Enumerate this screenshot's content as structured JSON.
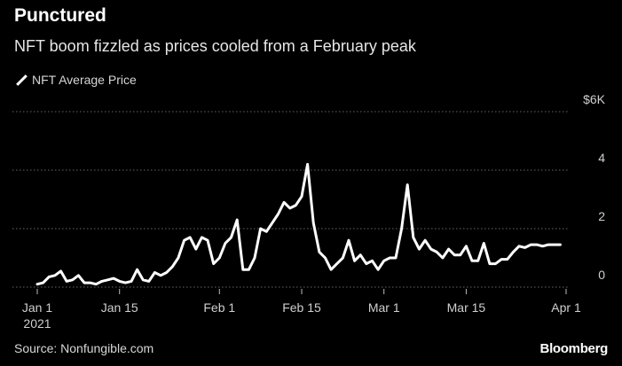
{
  "header": {
    "title": "Punctured",
    "subtitle": "NFT boom fizzled as prices cooled from a February peak"
  },
  "legend": {
    "label": "NFT Average Price"
  },
  "footer": {
    "source": "Source: Nonfungible.com",
    "brand": "Bloomberg"
  },
  "colors": {
    "background": "#000000",
    "line": "#ffffff",
    "grid": "#666666",
    "text": "#cfcfcf"
  },
  "chart_data": {
    "type": "line",
    "title": "Punctured",
    "subtitle": "NFT boom fizzled as prices cooled from a February peak",
    "xlabel": "",
    "ylabel": "",
    "x_range_days": [
      0,
      90
    ],
    "ylim": [
      0,
      6
    ],
    "y_ticks": [
      {
        "value": 0,
        "label": "0"
      },
      {
        "value": 2,
        "label": "2"
      },
      {
        "value": 4,
        "label": "4"
      },
      {
        "value": 6,
        "label": "$6K"
      }
    ],
    "x_ticks": [
      {
        "day": 0,
        "label": "Jan 1",
        "sublabel": "2021"
      },
      {
        "day": 14,
        "label": "Jan 15"
      },
      {
        "day": 31,
        "label": "Feb 1"
      },
      {
        "day": 45,
        "label": "Feb 15"
      },
      {
        "day": 59,
        "label": "Mar 1"
      },
      {
        "day": 73,
        "label": "Mar 15"
      },
      {
        "day": 90,
        "label": "Apr 1"
      }
    ],
    "grid": "dotted horizontal",
    "legend_position": "top-left",
    "series": [
      {
        "name": "NFT Average Price",
        "unit": "$K",
        "dates": [
          "2021-01-01",
          "2021-01-02",
          "2021-01-03",
          "2021-01-04",
          "2021-01-05",
          "2021-01-06",
          "2021-01-07",
          "2021-01-08",
          "2021-01-09",
          "2021-01-10",
          "2021-01-11",
          "2021-01-12",
          "2021-01-13",
          "2021-01-14",
          "2021-01-15",
          "2021-01-16",
          "2021-01-17",
          "2021-01-18",
          "2021-01-19",
          "2021-01-20",
          "2021-01-21",
          "2021-01-22",
          "2021-01-23",
          "2021-01-24",
          "2021-01-25",
          "2021-01-26",
          "2021-01-27",
          "2021-01-28",
          "2021-01-29",
          "2021-01-30",
          "2021-01-31",
          "2021-02-01",
          "2021-02-02",
          "2021-02-03",
          "2021-02-04",
          "2021-02-05",
          "2021-02-06",
          "2021-02-07",
          "2021-02-08",
          "2021-02-09",
          "2021-02-10",
          "2021-02-11",
          "2021-02-12",
          "2021-02-13",
          "2021-02-14",
          "2021-02-15",
          "2021-02-16",
          "2021-02-17",
          "2021-02-18",
          "2021-02-19",
          "2021-02-20",
          "2021-02-21",
          "2021-02-22",
          "2021-02-23",
          "2021-02-24",
          "2021-02-25",
          "2021-02-26",
          "2021-02-27",
          "2021-02-28",
          "2021-03-01",
          "2021-03-02",
          "2021-03-03",
          "2021-03-04",
          "2021-03-05",
          "2021-03-06",
          "2021-03-07",
          "2021-03-08",
          "2021-03-09",
          "2021-03-10",
          "2021-03-11",
          "2021-03-12",
          "2021-03-13",
          "2021-03-14",
          "2021-03-15",
          "2021-03-16",
          "2021-03-17",
          "2021-03-18",
          "2021-03-19",
          "2021-03-20",
          "2021-03-21",
          "2021-03-22",
          "2021-03-23",
          "2021-03-24",
          "2021-03-25",
          "2021-03-26",
          "2021-03-27",
          "2021-03-28",
          "2021-03-29",
          "2021-03-30",
          "2021-03-31"
        ],
        "values": [
          0.1,
          0.15,
          0.35,
          0.4,
          0.55,
          0.2,
          0.25,
          0.4,
          0.15,
          0.15,
          0.1,
          0.2,
          0.25,
          0.3,
          0.2,
          0.15,
          0.2,
          0.6,
          0.25,
          0.2,
          0.5,
          0.4,
          0.5,
          0.7,
          1.0,
          1.6,
          1.7,
          1.3,
          1.7,
          1.6,
          0.8,
          1.0,
          1.5,
          1.7,
          2.3,
          0.6,
          0.6,
          1.0,
          2.0,
          1.9,
          2.2,
          2.5,
          2.9,
          2.7,
          2.8,
          3.1,
          4.2,
          2.2,
          1.2,
          1.0,
          0.6,
          0.8,
          1.0,
          1.6,
          0.9,
          1.1,
          0.8,
          0.9,
          0.6,
          0.9,
          1.0,
          1.0,
          2.0,
          3.5,
          1.7,
          1.3,
          1.6,
          1.3,
          1.2,
          1.0,
          1.3,
          1.1,
          1.1,
          1.4,
          0.9,
          0.9,
          1.5,
          0.8,
          0.8,
          0.95,
          0.95,
          1.2,
          1.4,
          1.35,
          1.45,
          1.45,
          1.4,
          1.45,
          1.45,
          1.45
        ]
      }
    ]
  }
}
